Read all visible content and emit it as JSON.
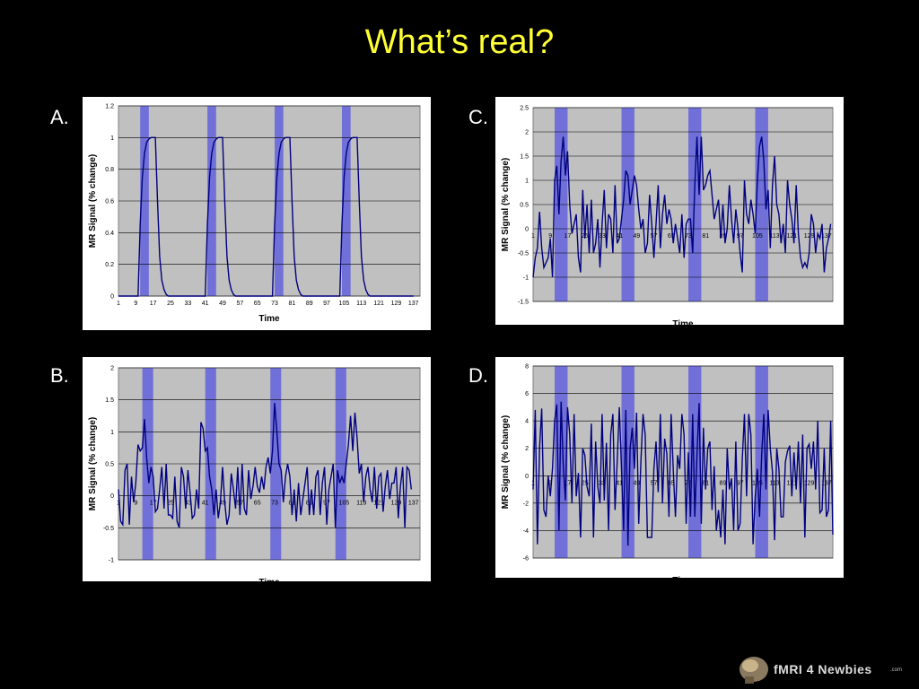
{
  "slide": {
    "title": "What’s real?",
    "panel_labels": [
      "A.",
      "B.",
      "C.",
      "D."
    ],
    "logo_text": "fMRI 4 Newbies",
    "logo_suffix": ".com"
  },
  "colors": {
    "background": "#000000",
    "title": "#ffff33",
    "plot_bg": "#c0c0c0",
    "block": "#7070d8",
    "line": "#000080"
  },
  "chart_data": [
    {
      "id": "A",
      "type": "line",
      "xlabel": "Time",
      "ylabel": "MR Signal (% change)",
      "ylim": [
        0,
        1.2
      ],
      "yticks": [
        0,
        0.2,
        0.4,
        0.6,
        0.8,
        1,
        1.2
      ],
      "yticklabels": [
        "0",
        "0.2",
        "0.4",
        "0.6",
        "0.8",
        "1",
        "1.2"
      ],
      "xlim": [
        1,
        140
      ],
      "xticks": [
        1,
        9,
        17,
        25,
        33,
        41,
        49,
        57,
        65,
        73,
        81,
        89,
        97,
        105,
        113,
        121,
        129,
        137
      ],
      "xtick_at_zero": false,
      "blocks": [
        [
          11,
          15
        ],
        [
          42,
          46
        ],
        [
          73,
          77
        ],
        [
          104,
          108
        ]
      ],
      "x": [
        1,
        10,
        11,
        12,
        13,
        14,
        15,
        16,
        17,
        18,
        19,
        20,
        21,
        22,
        23,
        24,
        25,
        41,
        42,
        43,
        44,
        45,
        46,
        47,
        48,
        49,
        50,
        51,
        52,
        53,
        54,
        55,
        56,
        72,
        73,
        74,
        75,
        76,
        77,
        78,
        79,
        80,
        81,
        82,
        83,
        84,
        85,
        86,
        87,
        103,
        104,
        105,
        106,
        107,
        108,
        109,
        110,
        111,
        112,
        113,
        114,
        115,
        116,
        117,
        118,
        137
      ],
      "y": [
        0,
        0,
        0.45,
        0.75,
        0.9,
        0.97,
        0.99,
        1,
        1,
        1,
        0.6,
        0.25,
        0.1,
        0.04,
        0.01,
        0,
        0,
        0,
        0.45,
        0.75,
        0.9,
        0.97,
        0.99,
        1,
        1,
        1,
        0.6,
        0.25,
        0.1,
        0.04,
        0.01,
        0,
        0,
        0,
        0.45,
        0.75,
        0.9,
        0.97,
        0.99,
        1,
        1,
        1,
        0.6,
        0.25,
        0.1,
        0.04,
        0.01,
        0,
        0,
        0,
        0.45,
        0.75,
        0.9,
        0.97,
        0.99,
        1,
        1,
        1,
        0.6,
        0.25,
        0.1,
        0.04,
        0.01,
        0,
        0,
        0
      ]
    },
    {
      "id": "B",
      "type": "line",
      "xlabel": "Time",
      "ylabel": "MR Signal (% change)",
      "ylim": [
        -1,
        2
      ],
      "yticks": [
        -1,
        -0.5,
        0,
        0.5,
        1,
        1.5,
        2
      ],
      "yticklabels": [
        "-1",
        "-0.5",
        "0",
        "0.5",
        "1",
        "1.5",
        "2"
      ],
      "xlim": [
        1,
        140
      ],
      "xticks": [
        1,
        9,
        17,
        25,
        33,
        41,
        49,
        57,
        65,
        73,
        81,
        89,
        97,
        105,
        113,
        121,
        129,
        137
      ],
      "xtick_at_zero": true,
      "blocks": [
        [
          12,
          17
        ],
        [
          41,
          46
        ],
        [
          71,
          76
        ],
        [
          101,
          106
        ]
      ],
      "y": [
        0.1,
        -0.4,
        -0.45,
        0.4,
        0.5,
        -0.45,
        0.3,
        -0.1,
        0.2,
        0.8,
        0.7,
        0.75,
        1.2,
        0.6,
        0.2,
        0.45,
        0.3,
        -0.25,
        -0.2,
        0.1,
        0.45,
        -0.2,
        0.5,
        -0.3,
        -0.3,
        -0.35,
        0.3,
        -0.4,
        -0.5,
        0.45,
        0.3,
        -0.2,
        0.4,
        0.05,
        -0.35,
        -0.3,
        0.1,
        -0.2,
        1.15,
        1.05,
        0.7,
        0.75,
        0.3,
        0.1,
        -0.3,
        0.1,
        -0.35,
        -0.1,
        0.45,
        -0.1,
        -0.45,
        -0.3,
        0.35,
        0.1,
        -0.2,
        0.45,
        -0.3,
        0.5,
        -0.2,
        -0.3,
        0.4,
        -0.05,
        0.15,
        0.45,
        0.15,
        0.05,
        0.3,
        0.1,
        0.45,
        0.6,
        0.35,
        0.7,
        1.45,
        1.0,
        0.5,
        0.4,
        -0.1,
        0.3,
        0.5,
        0.3,
        -0.3,
        0.1,
        -0.4,
        0.2,
        -0.3,
        -0.05,
        0.2,
        0.45,
        -0.3,
        0.1,
        -0.3,
        0.3,
        0.4,
        -0.3,
        0.2,
        0.45,
        -0.45,
        0.1,
        0.3,
        0.5,
        -0.5,
        0.4,
        0.2,
        0.3,
        0.2,
        0.5,
        0.8,
        1.25,
        0.7,
        1.3,
        0.9,
        0.35,
        0.5,
        -0.1,
        0.3,
        0.45,
        0.1,
        -0.1,
        0.45,
        -0.2,
        0.3,
        0.35,
        -0.25,
        0.15,
        0.4,
        -0.05,
        0.2,
        0.2,
        0.45,
        -0.35,
        0.15,
        0.45,
        -0.5,
        0.45,
        0.4,
        0.1
      ],
      "x_start": 1
    },
    {
      "id": "C",
      "type": "line",
      "xlabel": "Time",
      "ylabel": "MR Signal (% change)",
      "ylim": [
        -1.5,
        2.5
      ],
      "yticks": [
        -1.5,
        -1,
        -0.5,
        0,
        0.5,
        1,
        1.5,
        2,
        2.5
      ],
      "yticklabels": [
        "-1.5",
        "-1",
        "-0.5",
        "0",
        "0.5",
        "1",
        "1.5",
        "2",
        "2.5"
      ],
      "xlim": [
        1,
        140
      ],
      "xticks": [
        1,
        9,
        17,
        25,
        33,
        41,
        49,
        57,
        65,
        73,
        81,
        89,
        97,
        105,
        113,
        121,
        129,
        137
      ],
      "xtick_at_zero": true,
      "blocks": [
        [
          11,
          17
        ],
        [
          42,
          48
        ],
        [
          73,
          79
        ],
        [
          104,
          110
        ]
      ],
      "y": [
        -1,
        -0.6,
        -0.4,
        0.35,
        -0.4,
        -0.8,
        -0.7,
        -0.6,
        -0.2,
        -1,
        1,
        1.3,
        0.3,
        1.4,
        1.9,
        1.1,
        1.6,
        0.5,
        -0.1,
        0.1,
        0.3,
        -0.6,
        -0.9,
        0.8,
        -0.2,
        0.5,
        -0.5,
        0.6,
        -0.5,
        -0.3,
        0.2,
        -0.8,
        0.1,
        0.8,
        -0.4,
        0.3,
        0.2,
        -0.5,
        0.9,
        -0.3,
        -0.2,
        0.2,
        0.6,
        1.2,
        1.1,
        0.5,
        0.8,
        1.1,
        0.9,
        0.4,
        0,
        0.2,
        -0.5,
        -0.3,
        0.7,
        0.1,
        -0.6,
        0.1,
        0.9,
        -0.4,
        0.3,
        0.7,
        0.1,
        0.4,
        0.2,
        -0.3,
        0.1,
        -0.2,
        -0.5,
        0.3,
        -0.6,
        0.1,
        0.2,
        0.2,
        -0.5,
        0.9,
        1.9,
        0.7,
        1.9,
        0.8,
        0.9,
        1.1,
        1.2,
        0.7,
        0.2,
        0.4,
        0.6,
        -0.2,
        0.5,
        -0.3,
        0,
        0.9,
        0.2,
        -0.3,
        0.4,
        0,
        -0.5,
        -0.9,
        1,
        0.3,
        0.1,
        0.6,
        0.3,
        -0.1,
        1,
        1.7,
        1.9,
        1.4,
        0.4,
        0.8,
        -0.4,
        0.9,
        1.5,
        0.5,
        0.3,
        -0.3,
        0.1,
        -0.5,
        1,
        0.5,
        0.2,
        -0.3,
        0.9,
        -0.1,
        -0.6,
        -0.8,
        -0.7,
        -0.8,
        -0.5,
        0.3,
        0.1,
        -0.5,
        -0.1,
        -0.2,
        0.1,
        -0.9,
        -0.4,
        -0.2,
        0.1
      ],
      "x_start": 1
    },
    {
      "id": "D",
      "type": "line",
      "xlabel": "Time",
      "ylabel": "MR Signal (% change)",
      "ylim": [
        -6,
        8
      ],
      "yticks": [
        -6,
        -4,
        -2,
        0,
        2,
        4,
        6,
        8
      ],
      "yticklabels": [
        "-6",
        "-4",
        "-2",
        "0",
        "2",
        "4",
        "6",
        "8"
      ],
      "xlim": [
        1,
        140
      ],
      "xticks": [
        1,
        9,
        17,
        25,
        33,
        41,
        49,
        57,
        65,
        73,
        81,
        89,
        97,
        105,
        113,
        121,
        129,
        137
      ],
      "xtick_at_zero": true,
      "blocks": [
        [
          11,
          17
        ],
        [
          42,
          48
        ],
        [
          73,
          79
        ],
        [
          104,
          110
        ]
      ],
      "y": [
        -1,
        4.8,
        -5,
        2,
        4.9,
        -2.5,
        -3,
        0,
        -1.5,
        0.5,
        4,
        5.2,
        -4,
        5.4,
        0.8,
        -1.8,
        5,
        3,
        -2,
        4.5,
        -1.5,
        0.2,
        -4.5,
        2,
        1.5,
        -0.8,
        -1.5,
        3.8,
        -4.5,
        2.5,
        -0.8,
        -2,
        4.5,
        -1.8,
        2.4,
        -4,
        3,
        4.5,
        -2.5,
        1,
        5,
        0.5,
        -4,
        4.8,
        -5.1,
        2,
        3.5,
        0.5,
        4.6,
        -3.5,
        1,
        4.5,
        3,
        -4.5,
        -4.5,
        -4.5,
        0.5,
        2.5,
        -1.2,
        4.5,
        -2,
        2.7,
        1.6,
        -3,
        4.5,
        0.4,
        -3,
        1.5,
        0.5,
        4.5,
        3,
        -3.5,
        1.7,
        -3,
        4.5,
        -3,
        1.5,
        5.3,
        -3.5,
        3.5,
        -1,
        2,
        2.5,
        -2.5,
        0.7,
        -4,
        -2.5,
        -4.5,
        -1,
        -5,
        2,
        -1,
        -0.2,
        -4,
        2.5,
        -4,
        -3.5,
        1.2,
        4.5,
        -1.5,
        4.5,
        3,
        -5,
        -1.5,
        0.5,
        -3,
        1.5,
        4.5,
        -1,
        4.8,
        2,
        0.3,
        -4.7,
        2,
        0.5,
        -3,
        -3,
        1,
        1.8,
        2.2,
        -1.5,
        1.7,
        -1,
        2.5,
        -2,
        3,
        -4.5,
        2,
        2.3,
        0.5,
        2.5,
        -1,
        4,
        -2.7,
        -2.5,
        2,
        -3,
        -2.5,
        4,
        -4.3
      ],
      "x_start": 1
    }
  ]
}
